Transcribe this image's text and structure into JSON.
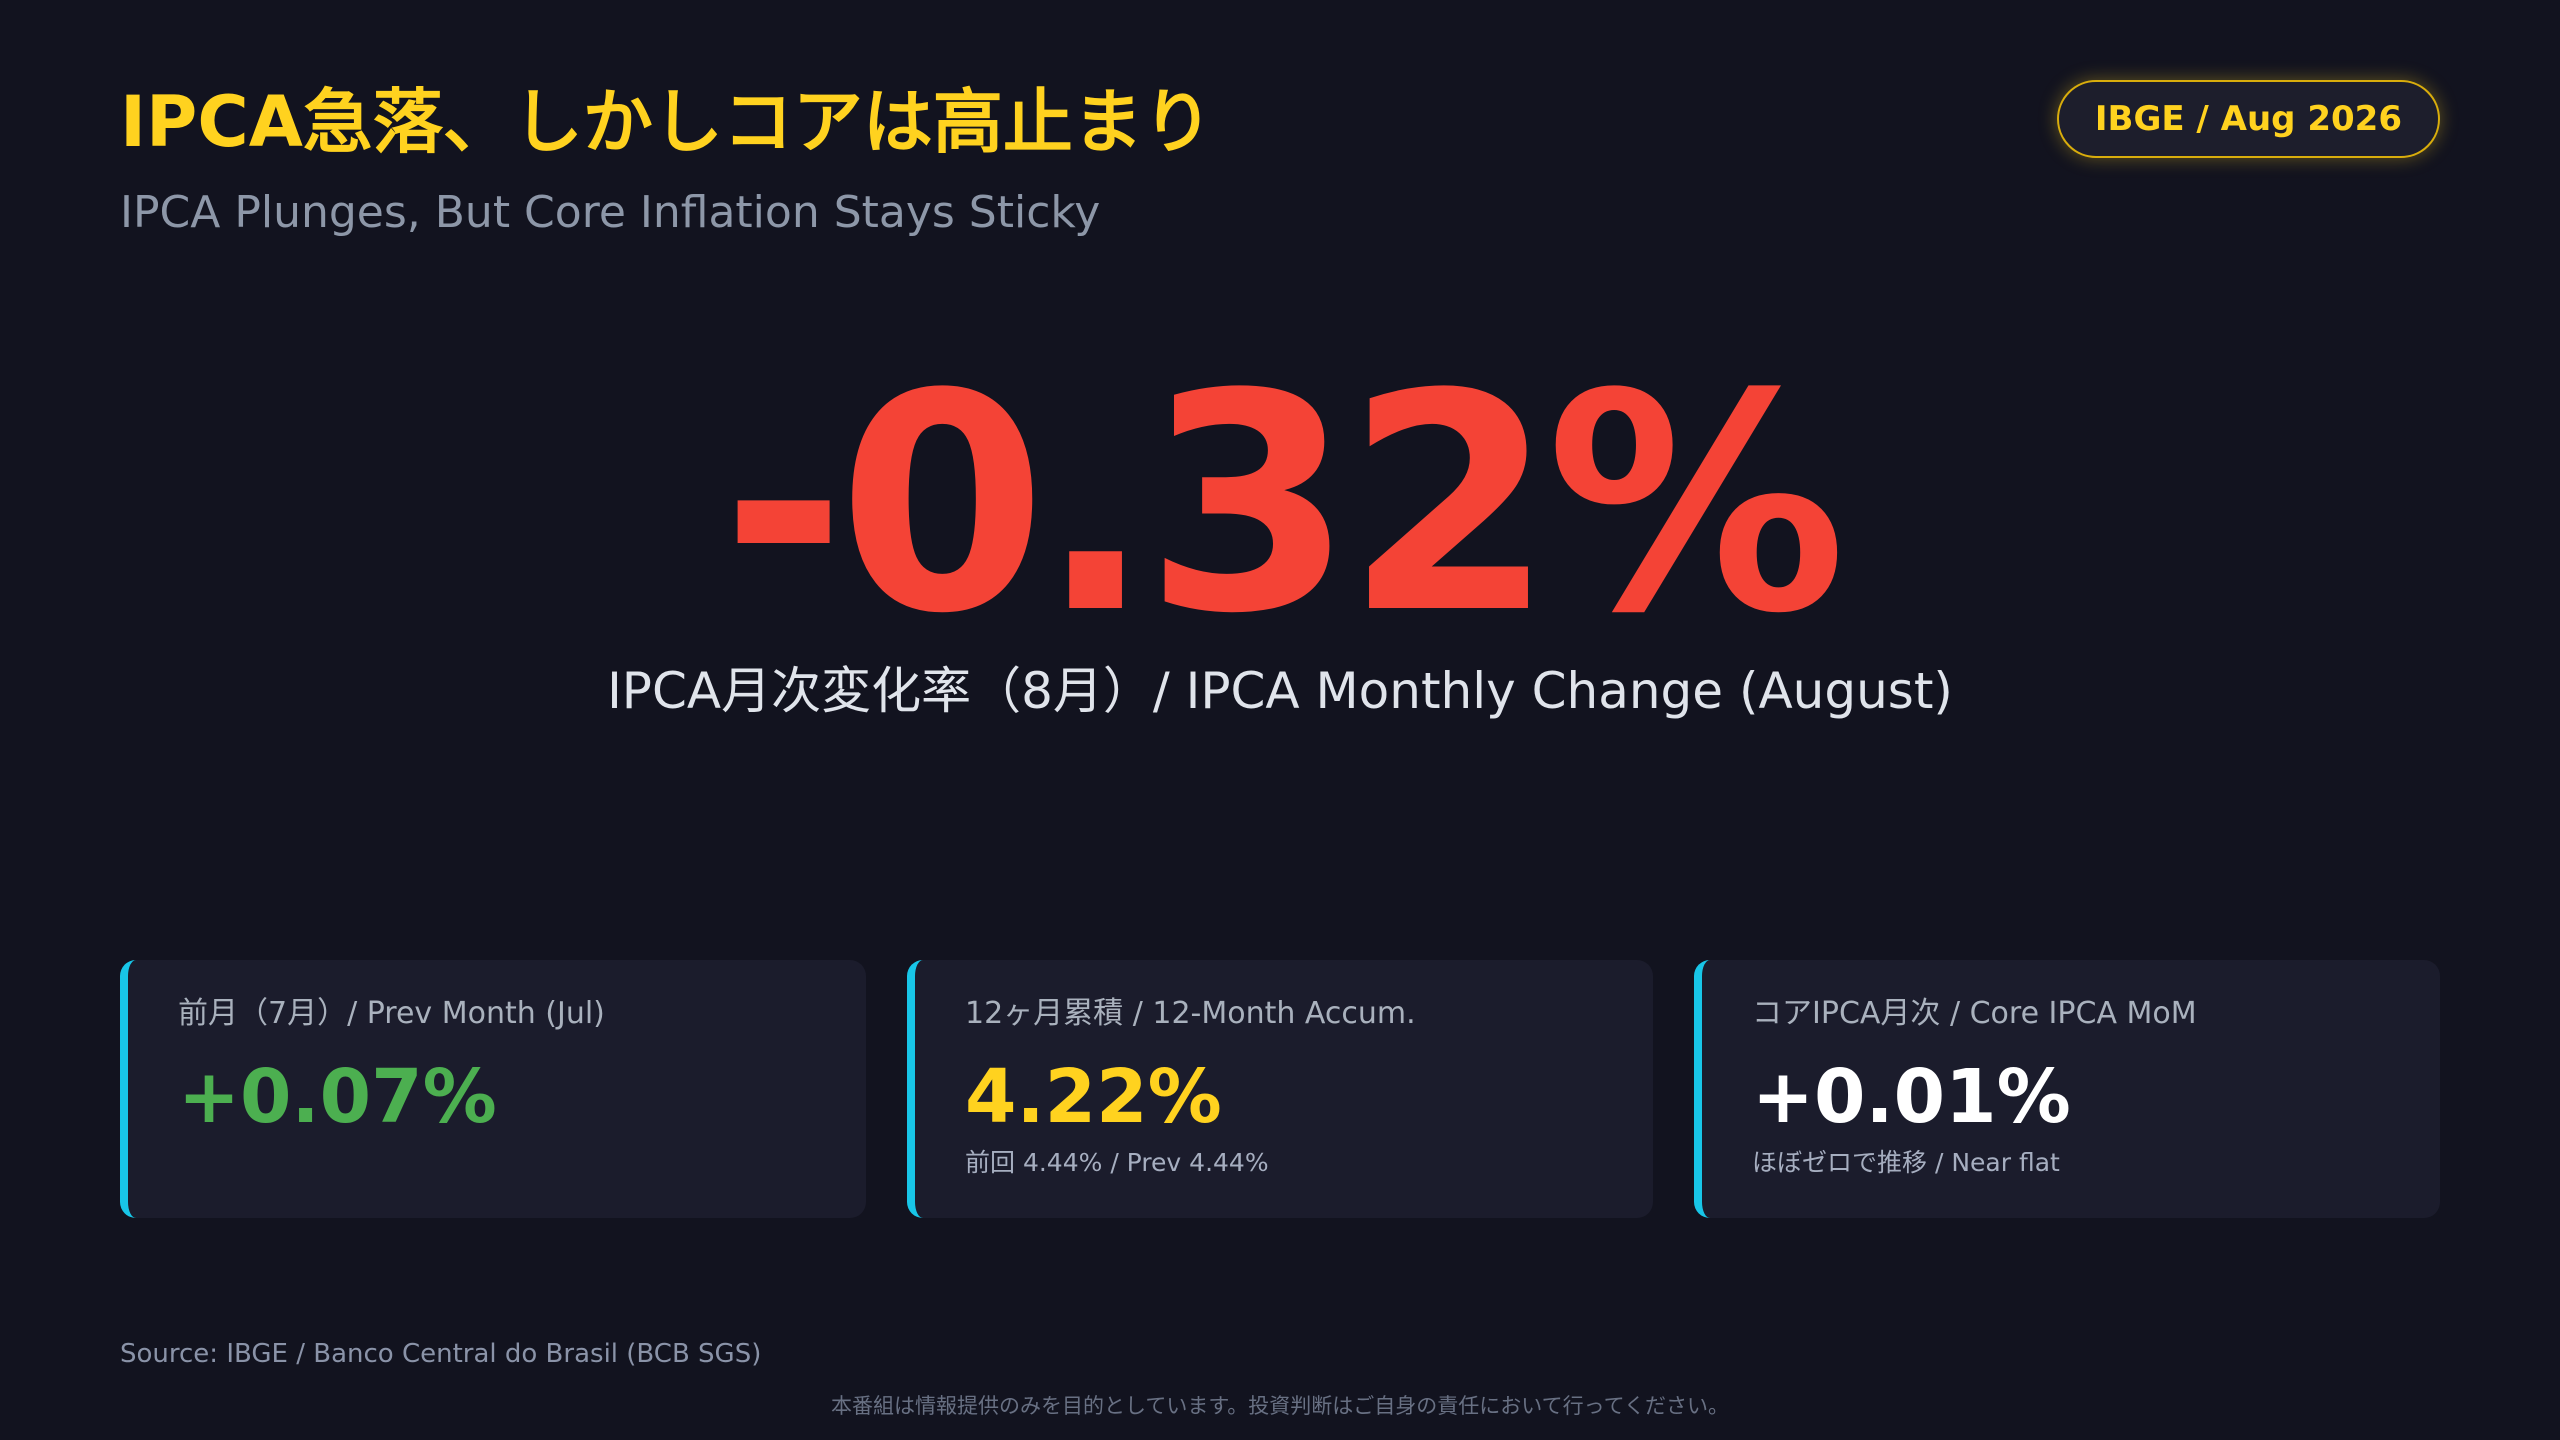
{
  "header": {
    "title_ja": "IPCA急落、しかしコアは高止まり",
    "title_en": "IPCA Plunges, But Core Inflation Stays Sticky",
    "badge": "IBGE / Aug 2026"
  },
  "hero": {
    "value": "-0.32%",
    "label": "IPCA月次変化率（8月）/ IPCA Monthly Change (August)"
  },
  "cards": [
    {
      "label": "前月（7月）/ Prev Month (Jul)",
      "value": "+0.07%",
      "note": "",
      "accent_color": "#4caf50"
    },
    {
      "label": "12ヶ月累積 / 12-Month Accum.",
      "value": "4.22%",
      "note": "前回 4.44% / Prev 4.44%",
      "accent_color": "#ffd21f"
    },
    {
      "label": "コアIPCA月次 / Core IPCA MoM",
      "value": "+0.01%",
      "note": "ほぼゼロで推移 / Near flat",
      "accent_color": "#ffffff"
    }
  ],
  "footer": {
    "source": "Source: IBGE / Banco Central do Brasil (BCB SGS)",
    "disclaimer": "本番組は情報提供のみを目的としています。投資判断はご自身の責任において行ってください。"
  },
  "colors": {
    "background": "#12131f",
    "title_accent": "#ffd21f",
    "hero_red": "#f44336",
    "card_border": "#18c6e8"
  }
}
